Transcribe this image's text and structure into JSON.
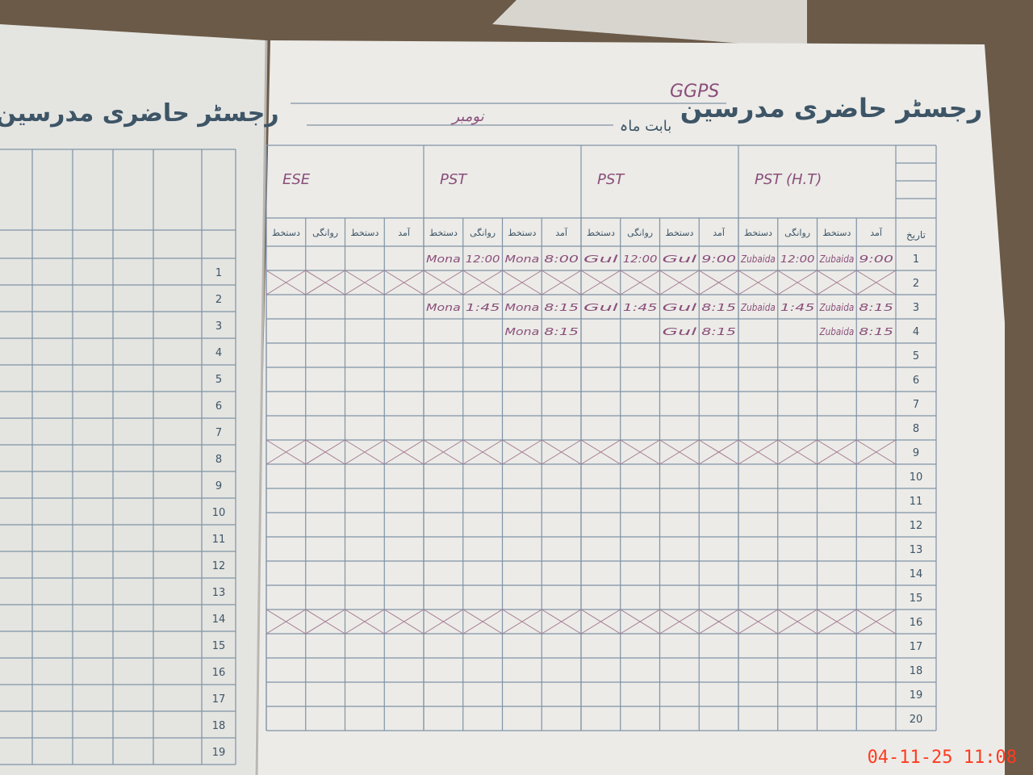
{
  "left_page": {
    "title": "رجسٹر حاضری مدرسین",
    "dates": [
      1,
      2,
      3,
      4,
      5,
      6,
      7,
      8,
      9,
      10,
      11,
      12,
      13,
      14,
      15,
      16,
      17,
      18,
      19
    ]
  },
  "header": {
    "title": "رجسٹر حاضری مدرسین",
    "school": "GGPS",
    "month_label": "بابت ماہ",
    "month": "نومبر"
  },
  "table": {
    "date_header": "تاریخ",
    "column_headers": [
      "آمد",
      "دستخط",
      "روانگی",
      "دستخط"
    ],
    "dates": [
      1,
      2,
      3,
      4,
      5,
      6,
      7,
      8,
      9,
      10,
      11,
      12,
      13,
      14,
      15,
      16,
      17,
      18,
      19,
      20
    ],
    "teachers": [
      {
        "designation": "PST (H.T)",
        "days": [
          {
            "arrival": "9:00",
            "arrival_sign": "Zubaida",
            "departure": "12:00",
            "departure_sign": "Zubaida"
          },
          null,
          {
            "arrival": "8:15",
            "arrival_sign": "Zubaida",
            "departure": "1:45",
            "departure_sign": "Zubaida"
          },
          {
            "arrival": "8:15",
            "arrival_sign": "Zubaida"
          }
        ]
      },
      {
        "designation": "PST",
        "days": [
          {
            "arrival": "9:00",
            "arrival_sign": "Gul",
            "departure": "12:00",
            "departure_sign": "Gul"
          },
          null,
          {
            "arrival": "8:15",
            "arrival_sign": "Gul",
            "departure": "1:45",
            "departure_sign": "Gul"
          },
          {
            "arrival": "8:15",
            "arrival_sign": "Gul"
          }
        ]
      },
      {
        "designation": "PST",
        "days": [
          {
            "arrival": "8:00",
            "arrival_sign": "Mona",
            "departure": "12:00",
            "departure_sign": "Mona"
          },
          null,
          {
            "arrival": "8:15",
            "arrival_sign": "Mona",
            "departure": "1:45",
            "departure_sign": "Mona"
          },
          {
            "arrival": "8:15",
            "arrival_sign": "Mona"
          }
        ]
      },
      {
        "designation": "ESE",
        "days": []
      }
    ]
  },
  "timestamp": "04-11-25  11:08"
}
